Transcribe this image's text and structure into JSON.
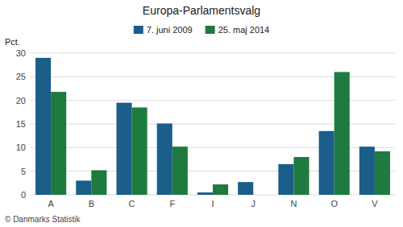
{
  "chart_data": {
    "type": "bar",
    "title": "Europa-Parlamentsvalg",
    "ylabel": "Pct.",
    "categories": [
      "A",
      "B",
      "C",
      "F",
      "I",
      "J",
      "N",
      "O",
      "V"
    ],
    "series": [
      {
        "name": "7. juni 2009",
        "color": "#1B5E8A",
        "values": [
          29.0,
          3.0,
          19.5,
          15.1,
          0.5,
          2.7,
          6.5,
          13.5,
          10.2
        ]
      },
      {
        "name": "25. maj 2014",
        "color": "#1E7A3E",
        "values": [
          21.8,
          5.2,
          18.5,
          10.2,
          2.2,
          0.0,
          8.0,
          26.0,
          9.2
        ]
      }
    ],
    "ylim": [
      0,
      30
    ],
    "yticks": [
      0,
      5,
      10,
      15,
      20,
      25,
      30
    ],
    "grid": true,
    "legend": "top",
    "annotations": [
      "© Danmarks Statistik"
    ]
  }
}
